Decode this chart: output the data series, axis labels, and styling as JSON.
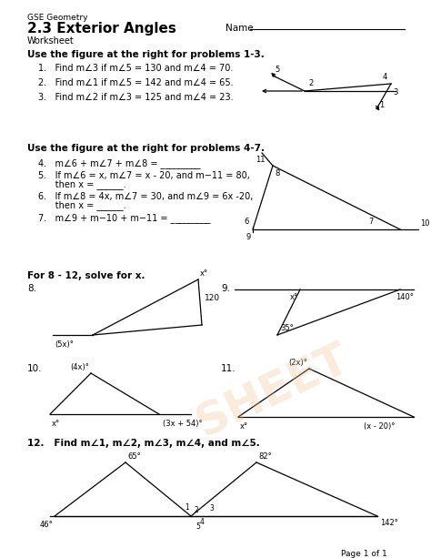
{
  "title_small": "GSE Geometry",
  "title_large": "2.3 Exterior Angles",
  "subtitle": "Worksheet",
  "name_label": "Name",
  "bg_color": "#ffffff",
  "footer": "Page 1 of 1",
  "section1_title": "Use the figure at the right for problems 1-3.",
  "section2_title": "Use the figure at the right for problems 4-7.",
  "section3_title": "For 8 - 12, solve for x.",
  "lines1": [
    "1.   Find m∠3 if m∠5 = 130 and m∠4 = 70.",
    "2.   Find m∠1 if m∠5 = 142 and m∠4 = 65.",
    "3.   Find m∠2 if m∠3 = 125 and m∠4 = 23."
  ],
  "lines2_a": "4.   m∠6 + m∠7 + m∠8 = _________",
  "lines2_b1": "5.   If m∠6 = x, m∠7 = x - 20, and m−11 = 80,",
  "lines2_b2": "      then x = ______.",
  "lines2_c1": "6.   If m∠8 = 4x, m∠7 = 30, and m∠9 = 6x -20,",
  "lines2_c2": "      then x = ______.",
  "lines2_d": "7.   m∠9 + m−10 + m−11 = _________",
  "prob12": "12.   Find m∠1, m∠2, m∠3, m∠4, and m∠5."
}
